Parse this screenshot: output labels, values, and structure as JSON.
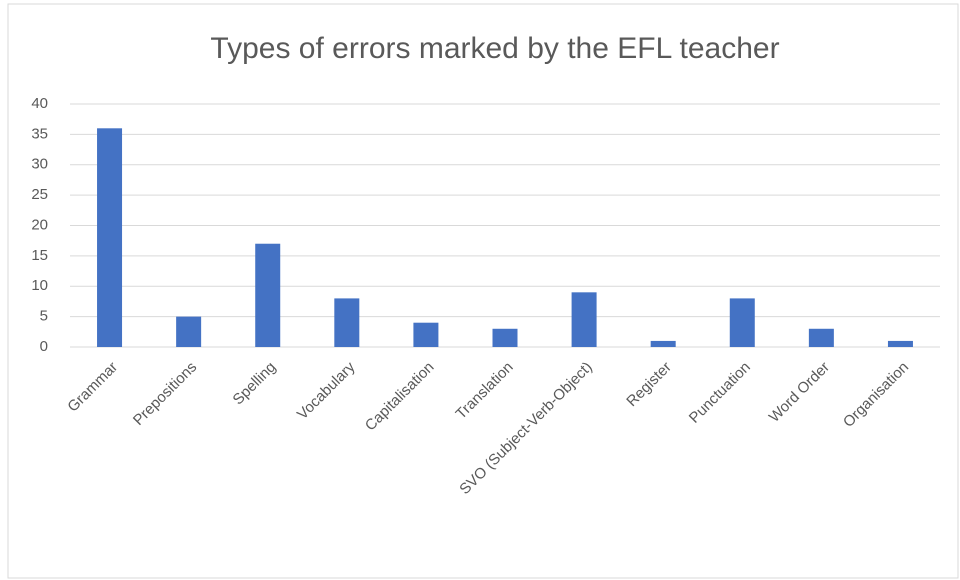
{
  "chart_data": {
    "type": "bar",
    "title": "Types of errors marked by the EFL teacher",
    "categories": [
      "Grammar",
      "Prepositions",
      "Spelling",
      "Vocabulary",
      "Capitalisation",
      "Translation",
      "SVO (Subject-Verb-Object)",
      "Register",
      "Punctuation",
      "Word Order",
      "Organisation"
    ],
    "values": [
      36,
      5,
      17,
      8,
      4,
      3,
      9,
      1,
      8,
      3,
      1
    ],
    "color": "#4472c4",
    "ylim": [
      0,
      40
    ],
    "yticks": [
      0,
      5,
      10,
      15,
      20,
      25,
      30,
      35,
      40
    ],
    "grid": true
  }
}
